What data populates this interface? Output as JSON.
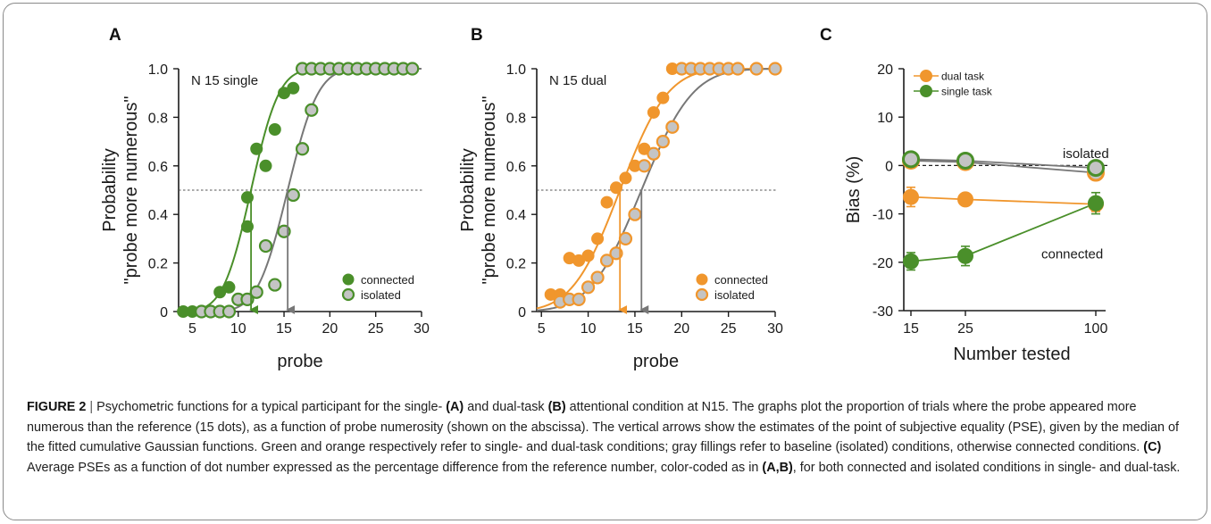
{
  "colors": {
    "green": "#4a8f2a",
    "orange": "#f0962d",
    "gray_line": "#777777",
    "gray_fill": "#c4c4c4",
    "axis": "#1a1a1a"
  },
  "chart_data": [
    {
      "panel": "A",
      "type": "scatter",
      "annotation": "N 15 single",
      "xlabel": "probe",
      "ylabel": [
        "Probability",
        "\"probe more numerous\""
      ],
      "xlim": [
        3.5,
        30
      ],
      "ylim": [
        0,
        1.0
      ],
      "xticks": [
        5,
        10,
        15,
        20,
        25,
        30
      ],
      "yticks": [
        0,
        0.2,
        0.4,
        0.6,
        0.8,
        1.0
      ],
      "ytick_labels": [
        "0",
        "0.2",
        "0.4",
        "0.6",
        "0.8",
        "1.0"
      ],
      "reference_line": 0.5,
      "legend": {
        "position": "bottom-right",
        "entries": [
          "connected",
          "isolated"
        ]
      },
      "series": [
        {
          "name": "connected",
          "color": "green",
          "fill": "green",
          "pse": 11.4,
          "sd": 2.4,
          "points": [
            [
              4,
              0
            ],
            [
              5,
              0
            ],
            [
              8,
              0.08
            ],
            [
              9,
              0.1
            ],
            [
              11,
              0.47
            ],
            [
              11,
              0.35
            ],
            [
              12,
              0.67
            ],
            [
              13,
              0.6
            ],
            [
              14,
              0.75
            ],
            [
              15,
              0.9
            ],
            [
              16,
              0.92
            ],
            [
              17,
              1
            ],
            [
              18,
              1
            ],
            [
              19,
              1
            ],
            [
              20,
              1
            ],
            [
              21,
              1
            ],
            [
              22,
              1
            ],
            [
              23,
              1
            ],
            [
              24,
              1
            ],
            [
              25,
              1
            ],
            [
              26,
              1
            ],
            [
              27,
              1
            ],
            [
              28,
              1
            ],
            [
              29,
              1
            ]
          ]
        },
        {
          "name": "isolated",
          "color": "gray_line",
          "fill": "gray_fill",
          "edge": "green",
          "pse": 15.4,
          "sd": 2.6,
          "points": [
            [
              6,
              0
            ],
            [
              7,
              0
            ],
            [
              8,
              0
            ],
            [
              9,
              0
            ],
            [
              10,
              0.05
            ],
            [
              11,
              0.05
            ],
            [
              12,
              0.08
            ],
            [
              13,
              0.27
            ],
            [
              14,
              0.11
            ],
            [
              15,
              0.33
            ],
            [
              16,
              0.48
            ],
            [
              17,
              0.67
            ],
            [
              18,
              0.83
            ],
            [
              17,
              1
            ],
            [
              18,
              1
            ],
            [
              19,
              1
            ],
            [
              20,
              1
            ],
            [
              21,
              1
            ],
            [
              22,
              1
            ],
            [
              23,
              1
            ],
            [
              24,
              1
            ],
            [
              25,
              1
            ],
            [
              26,
              1
            ],
            [
              27,
              1
            ],
            [
              28,
              1
            ],
            [
              29,
              1
            ]
          ]
        }
      ]
    },
    {
      "panel": "B",
      "type": "scatter",
      "annotation": "N 15 dual",
      "xlabel": "probe",
      "ylabel": [
        "Probability",
        "\"probe more numerous\""
      ],
      "xlim": [
        4.5,
        30
      ],
      "ylim": [
        0,
        1.0
      ],
      "xticks": [
        5,
        10,
        15,
        20,
        25,
        30
      ],
      "yticks": [
        0,
        0.2,
        0.4,
        0.6,
        0.8,
        1.0
      ],
      "ytick_labels": [
        "0",
        "0.2",
        "0.4",
        "0.6",
        "0.8",
        "1.0"
      ],
      "reference_line": 0.5,
      "legend": {
        "position": "bottom-right",
        "entries": [
          "connected",
          "isolated"
        ]
      },
      "series": [
        {
          "name": "connected",
          "color": "orange",
          "fill": "orange",
          "pse": 13.4,
          "sd": 4.0,
          "points": [
            [
              6,
              0.07
            ],
            [
              7,
              0.07
            ],
            [
              8,
              0.22
            ],
            [
              9,
              0.21
            ],
            [
              10,
              0.23
            ],
            [
              11,
              0.3
            ],
            [
              12,
              0.45
            ],
            [
              13,
              0.51
            ],
            [
              14,
              0.55
            ],
            [
              15,
              0.6
            ],
            [
              16,
              0.67
            ],
            [
              17,
              0.82
            ],
            [
              18,
              0.88
            ],
            [
              19,
              1
            ],
            [
              20,
              1
            ],
            [
              21,
              1
            ],
            [
              22,
              1
            ],
            [
              23,
              1
            ],
            [
              24,
              1
            ],
            [
              25,
              1
            ],
            [
              26,
              1
            ],
            [
              28,
              1
            ],
            [
              30,
              1
            ]
          ]
        },
        {
          "name": "isolated",
          "color": "gray_line",
          "fill": "gray_fill",
          "edge": "orange",
          "pse": 15.7,
          "sd": 4.3,
          "points": [
            [
              7,
              0.04
            ],
            [
              8,
              0.05
            ],
            [
              9,
              0.05
            ],
            [
              10,
              0.1
            ],
            [
              11,
              0.14
            ],
            [
              12,
              0.21
            ],
            [
              13,
              0.24
            ],
            [
              14,
              0.3
            ],
            [
              15,
              0.4
            ],
            [
              16,
              0.6
            ],
            [
              17,
              0.65
            ],
            [
              18,
              0.7
            ],
            [
              19,
              0.76
            ],
            [
              20,
              1
            ],
            [
              21,
              1
            ],
            [
              22,
              1
            ],
            [
              23,
              1
            ],
            [
              24,
              1
            ],
            [
              25,
              1
            ],
            [
              26,
              1
            ],
            [
              28,
              1
            ],
            [
              30,
              1
            ]
          ]
        }
      ]
    },
    {
      "panel": "C",
      "type": "line",
      "xlabel": "Number tested",
      "ylabel": "Bias (%)",
      "x_categories": [
        "15",
        "25",
        "100"
      ],
      "ylim": [
        -30,
        20
      ],
      "yticks": [
        -30,
        -20,
        -10,
        0,
        10,
        20
      ],
      "zero_line": 0,
      "legend": {
        "position": "top-left",
        "entries": [
          "dual task",
          "single task"
        ]
      },
      "annotations": [
        "isolated",
        "connected"
      ],
      "series": [
        {
          "name": "dual task",
          "condition": "connected",
          "color": "orange",
          "fill": "orange",
          "values": [
            -6.5,
            -7.0,
            -8.0
          ],
          "errors": [
            2.0,
            1.2,
            1.5
          ]
        },
        {
          "name": "single task",
          "condition": "connected",
          "color": "green",
          "fill": "green",
          "values": [
            -19.8,
            -18.7,
            -7.8
          ],
          "errors": [
            1.8,
            2.0,
            2.2
          ]
        },
        {
          "name": "dual task",
          "condition": "isolated",
          "color": "gray_line",
          "fill": "gray_fill",
          "edge": "orange",
          "values": [
            1.0,
            0.7,
            -1.5
          ],
          "errors": [
            1.0,
            1.0,
            1.0
          ]
        },
        {
          "name": "single task",
          "condition": "isolated",
          "color": "gray_line",
          "fill": "gray_fill",
          "edge": "green",
          "values": [
            1.3,
            1.0,
            -0.5
          ],
          "errors": [
            1.0,
            1.0,
            1.0
          ]
        }
      ]
    }
  ],
  "caption": {
    "label": "FIGURE 2",
    "separator": "|",
    "segments": [
      {
        "text": " Psychometric functions for a typical participant for the single- ",
        "bold": false
      },
      {
        "text": "(A)",
        "bold": true
      },
      {
        "text": " and dual-task ",
        "bold": false
      },
      {
        "text": "(B)",
        "bold": true
      },
      {
        "text": " attentional condition at N15. The graphs plot the proportion of trials where the probe appeared more numerous than the reference (15 dots), as a function of probe numerosity (shown on the abscissa). The vertical arrows show the estimates of the point of subjective equality (PSE), given by the median of the fitted cumulative Gaussian functions. Green and orange respectively refer to single- and dual-task conditions; gray fillings refer to baseline (isolated) conditions, otherwise connected conditions. ",
        "bold": false
      },
      {
        "text": "(C)",
        "bold": true
      },
      {
        "text": " Average PSEs as a function of dot number expressed as the percentage difference from the reference number, color-coded as in ",
        "bold": false
      },
      {
        "text": "(A,B)",
        "bold": true
      },
      {
        "text": ", for both connected and isolated conditions in single- and dual-task.",
        "bold": false
      }
    ]
  }
}
